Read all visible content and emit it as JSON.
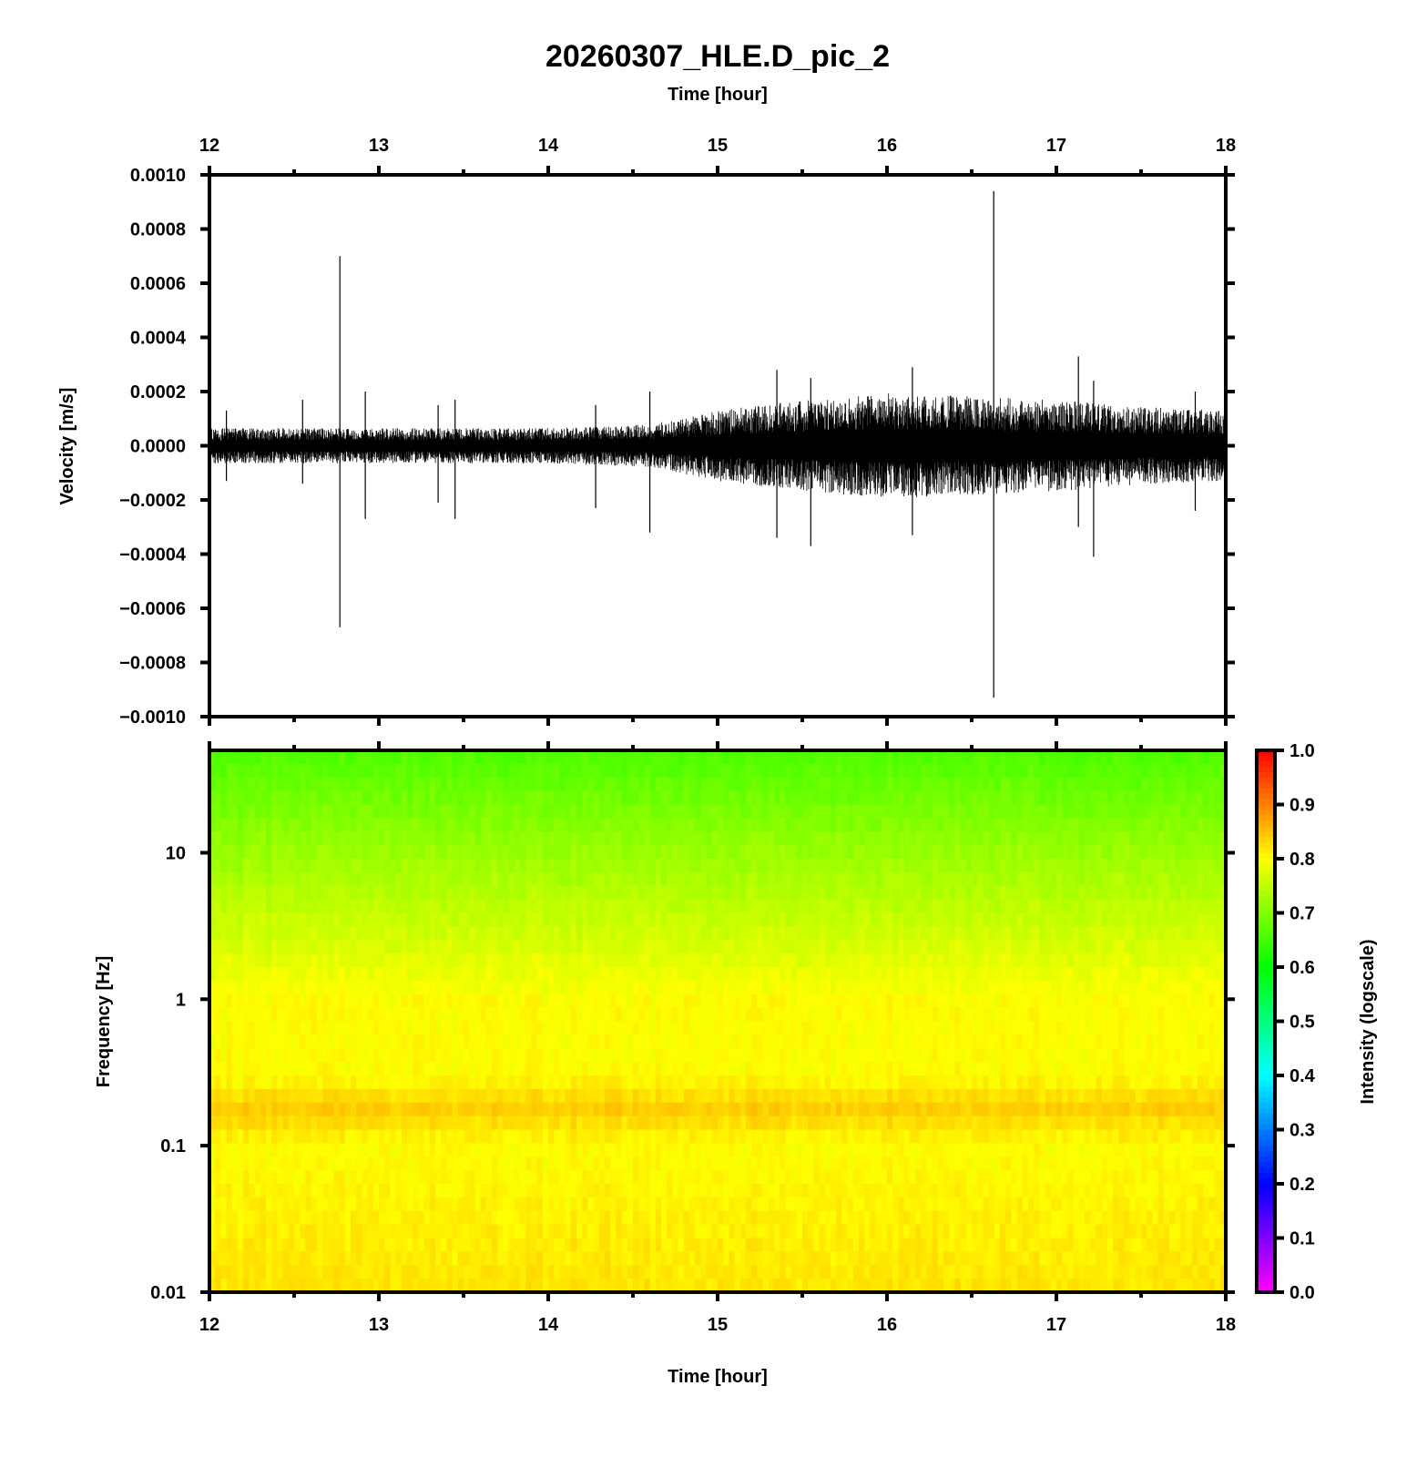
{
  "chart_data": [
    {
      "type": "line",
      "title": "20260307_HLE.D_pic_2",
      "xlabel": "Time [hour]",
      "ylabel": "Velocity [m/s]",
      "xlim": [
        12,
        18
      ],
      "ylim": [
        -0.001,
        0.001
      ],
      "xticks": [
        "12",
        "13",
        "14",
        "15",
        "16",
        "17",
        "18"
      ],
      "yticks": [
        "0.0010",
        "0.0008",
        "0.0006",
        "0.0004",
        "0.0002",
        "0.0000",
        "−0.0002",
        "−0.0004",
        "−0.0006",
        "−0.0008",
        "−0.0010"
      ],
      "noise_envelope": [
        [
          12,
          5e-05
        ],
        [
          13,
          5e-05
        ],
        [
          14,
          5e-05
        ],
        [
          14.6,
          6e-05
        ],
        [
          15,
          0.0001
        ],
        [
          15.5,
          0.00013
        ],
        [
          16,
          0.00015
        ],
        [
          16.5,
          0.00014
        ],
        [
          17,
          0.00013
        ],
        [
          17.5,
          0.00011
        ],
        [
          18,
          0.0001
        ]
      ],
      "spikes": [
        [
          12.1,
          0.00013,
          -0.00013
        ],
        [
          12.55,
          0.00017,
          -0.00014
        ],
        [
          12.77,
          0.0007,
          -0.00067
        ],
        [
          12.92,
          0.0002,
          -0.00027
        ],
        [
          13.35,
          0.00015,
          -0.00021
        ],
        [
          13.45,
          0.00017,
          -0.00027
        ],
        [
          14.28,
          0.00015,
          -0.00023
        ],
        [
          14.6,
          0.0002,
          -0.00032
        ],
        [
          15.35,
          0.00028,
          -0.00034
        ],
        [
          15.55,
          0.00025,
          -0.00037
        ],
        [
          16.15,
          0.00029,
          -0.00033
        ],
        [
          16.63,
          0.00094,
          -0.00093
        ],
        [
          17.13,
          0.00033,
          -0.0003
        ],
        [
          17.22,
          0.00024,
          -0.00041
        ],
        [
          17.82,
          0.0002,
          -0.00024
        ]
      ]
    },
    {
      "type": "heatmap",
      "xlabel": "Time [hour]",
      "ylabel": "Frequency [Hz]",
      "xlim": [
        12,
        18
      ],
      "ylim": [
        0.01,
        50
      ],
      "yscale": "log",
      "yticks": [
        "0.01",
        "0.1",
        "1",
        "10"
      ],
      "intensity_by_frequency": [
        [
          0.01,
          0.82
        ],
        [
          0.1,
          0.8
        ],
        [
          0.18,
          0.84
        ],
        [
          0.3,
          0.8
        ],
        [
          1,
          0.8
        ],
        [
          3,
          0.76
        ],
        [
          10,
          0.72
        ],
        [
          50,
          0.66
        ]
      ],
      "colorbar": {
        "label": "Intensity (logscale)",
        "range": [
          0,
          1
        ],
        "ticks": [
          "0.0",
          "0.1",
          "0.2",
          "0.3",
          "0.4",
          "0.5",
          "0.6",
          "0.7",
          "0.8",
          "0.9",
          "1.0"
        ]
      }
    }
  ]
}
